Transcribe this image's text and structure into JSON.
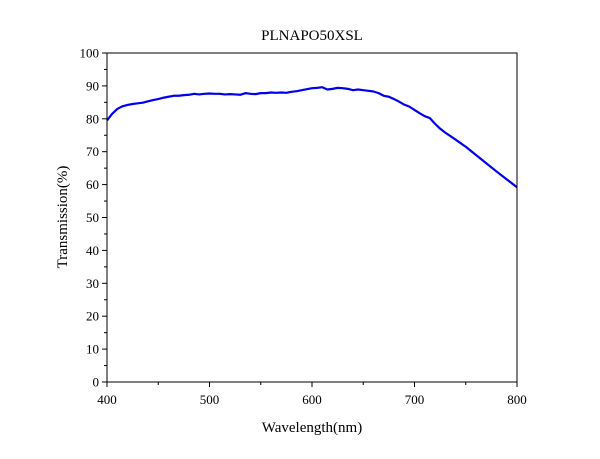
{
  "chart_data": {
    "type": "line",
    "title": "PLNAPO50XSL",
    "xlabel": "Wavelength(nm)",
    "ylabel": "Transmission(%)",
    "xlim": [
      400,
      800
    ],
    "ylim": [
      0,
      100
    ],
    "xticks": [
      400,
      500,
      600,
      700,
      800
    ],
    "yticks": [
      0,
      10,
      20,
      30,
      40,
      50,
      60,
      70,
      80,
      90,
      100
    ],
    "grid": false,
    "series": [
      {
        "color": "#0000ee",
        "x": [
          400,
          405,
          410,
          415,
          420,
          425,
          430,
          435,
          440,
          445,
          450,
          455,
          460,
          465,
          470,
          475,
          480,
          485,
          490,
          495,
          500,
          505,
          510,
          515,
          520,
          525,
          530,
          535,
          540,
          545,
          550,
          555,
          560,
          565,
          570,
          575,
          580,
          585,
          590,
          595,
          600,
          605,
          610,
          615,
          620,
          625,
          630,
          635,
          640,
          645,
          650,
          655,
          660,
          665,
          670,
          675,
          680,
          685,
          690,
          695,
          700,
          705,
          710,
          715,
          720,
          725,
          730,
          740,
          750,
          760,
          770,
          780,
          790,
          800
        ],
        "y": [
          79.5,
          81.5,
          83.0,
          83.8,
          84.2,
          84.5,
          84.7,
          84.9,
          85.3,
          85.7,
          86.0,
          86.4,
          86.7,
          87.0,
          87.0,
          87.2,
          87.3,
          87.6,
          87.4,
          87.6,
          87.7,
          87.6,
          87.6,
          87.4,
          87.5,
          87.4,
          87.3,
          87.8,
          87.6,
          87.5,
          87.8,
          87.8,
          88.0,
          87.9,
          88.0,
          87.9,
          88.2,
          88.4,
          88.7,
          89.0,
          89.3,
          89.4,
          89.6,
          88.9,
          89.1,
          89.4,
          89.3,
          89.1,
          88.7,
          88.9,
          88.7,
          88.5,
          88.3,
          87.8,
          87.0,
          86.7,
          86.0,
          85.2,
          84.3,
          83.7,
          82.7,
          81.7,
          80.8,
          80.2,
          78.5,
          77.0,
          75.8,
          73.7,
          71.5,
          69.0,
          66.5,
          64.0,
          61.6,
          59.2
        ]
      }
    ]
  }
}
